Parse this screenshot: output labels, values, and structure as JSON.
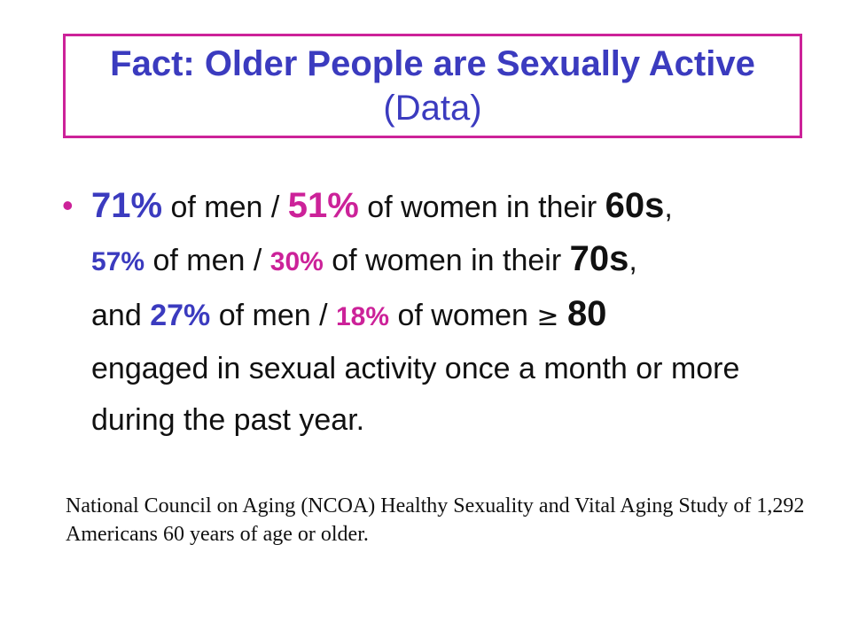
{
  "title": {
    "bold_text": "Fact: Older People are Sexually Active",
    "light_text": " (Data)"
  },
  "bullet": {
    "symbol": "•",
    "pct_men_60s": "71%",
    "of_men_1": " of men / ",
    "pct_women_60s": "51%",
    "of_women_1": " of women in their ",
    "age_60s": "60s",
    "comma_1": ",",
    "pct_men_70s": "57%",
    "of_men_2": " of men / ",
    "pct_women_70s": "30%",
    "of_women_2": " of women in their ",
    "age_70s": "70s",
    "comma_2": ",",
    "and_text": "and ",
    "pct_men_80": "27%",
    "of_men_3": " of men / ",
    "pct_women_80": "18%",
    "of_women_3": " of women ",
    "ge_symbol": "≥",
    "age_80": "80",
    "rest": "engaged in sexual activity once a month or more during the past year."
  },
  "source": {
    "text": "National Council on Aging (NCOA) Healthy Sexuality and Vital Aging Study of 1,292 Americans 60 years of age or older."
  },
  "colors": {
    "title_blue": "#3b3bbf",
    "accent_magenta": "#cc2299",
    "text_black": "#111111"
  }
}
